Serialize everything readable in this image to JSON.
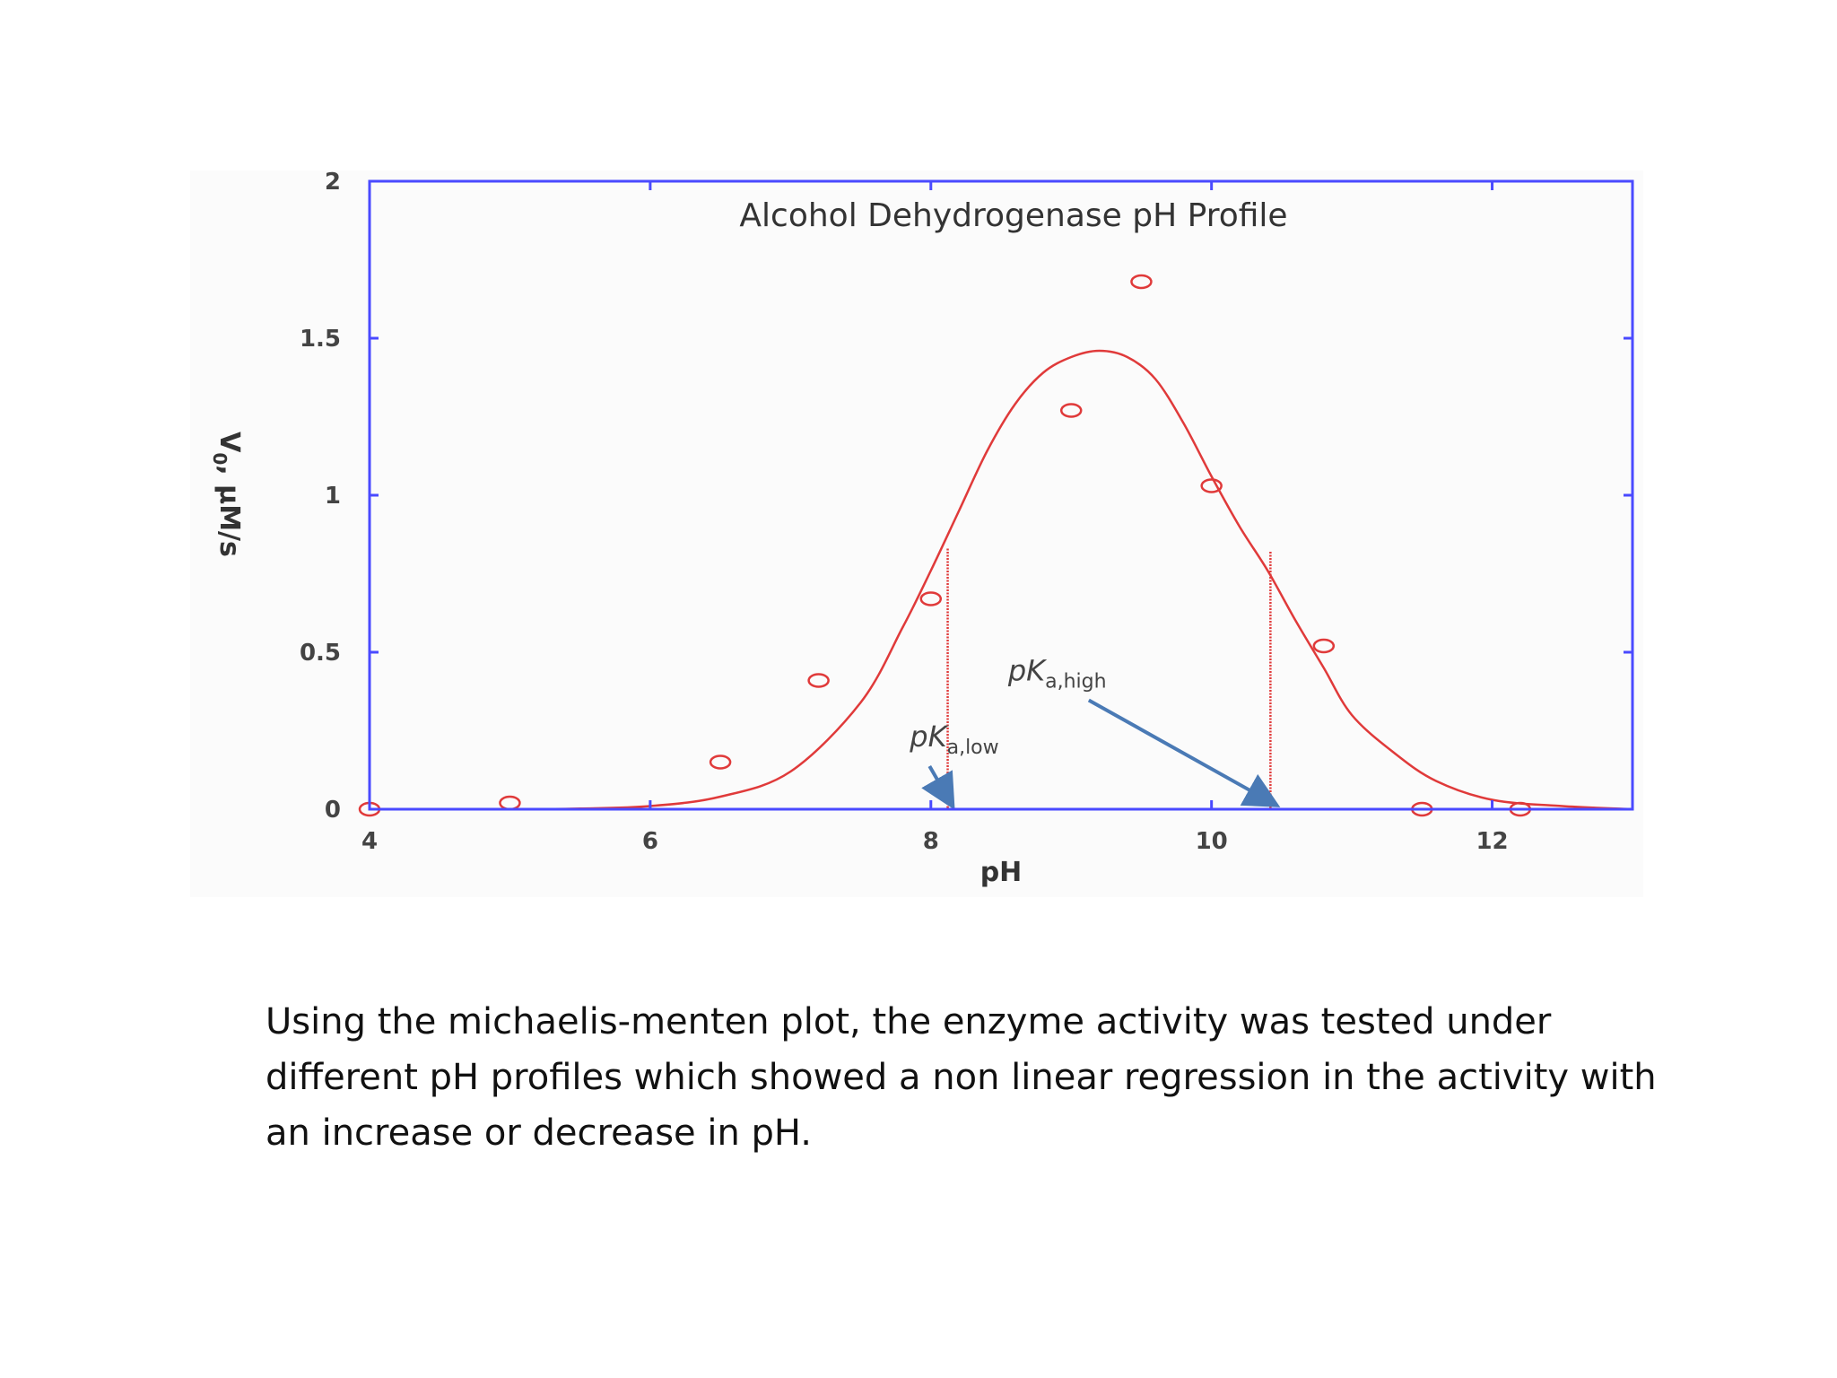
{
  "caption": "Using the michaelis-menten plot, the enzyme activity was tested under different pH profiles which showed a non linear regression in the activity with an increase or decrease in pH.",
  "colors": {
    "frame": "#4a4aff",
    "series": "#e03a3a",
    "arrow": "#4a7ab5",
    "plot_background": "#fbfbfb"
  },
  "chart_data": {
    "type": "scatter",
    "title": "Alcohol Dehydrogenase pH Profile",
    "xlabel": "pH",
    "ylabel": "V",
    "ylabel_sub": "0",
    "ylabel_unit": ", μM/s",
    "xlim": [
      4,
      13
    ],
    "ylim": [
      0,
      2
    ],
    "xticks": [
      4,
      6,
      8,
      10,
      12
    ],
    "yticks": [
      0,
      0.5,
      1,
      1.5,
      2
    ],
    "ytick_labels": [
      "0",
      "0.5",
      "1",
      "1.5",
      "2"
    ],
    "grid": false,
    "series": [
      {
        "kind": "points",
        "marker": "open-circle",
        "x": [
          4.0,
          5.0,
          6.5,
          7.2,
          8.0,
          9.0,
          9.5,
          10.0,
          10.8,
          11.5,
          12.2
        ],
        "y": [
          0.0,
          0.02,
          0.15,
          0.41,
          0.67,
          1.27,
          1.68,
          1.03,
          0.52,
          0.0,
          0.0
        ]
      },
      {
        "kind": "fit-curve",
        "x": [
          4.5,
          5.0,
          5.5,
          6.0,
          6.5,
          7.0,
          7.5,
          7.8,
          8.0,
          8.2,
          8.4,
          8.6,
          8.8,
          9.0,
          9.2,
          9.4,
          9.6,
          9.8,
          10.0,
          10.2,
          10.4,
          10.6,
          10.8,
          11.0,
          11.3,
          11.6,
          12.0,
          12.5,
          13.0
        ],
        "y": [
          0.0,
          0.0,
          0.002,
          0.01,
          0.04,
          0.12,
          0.34,
          0.58,
          0.76,
          0.95,
          1.14,
          1.29,
          1.39,
          1.44,
          1.46,
          1.44,
          1.37,
          1.23,
          1.06,
          0.9,
          0.76,
          0.6,
          0.45,
          0.3,
          0.18,
          0.09,
          0.03,
          0.01,
          0.0
        ]
      }
    ],
    "annotations": [
      {
        "name": "pka-low",
        "label_main": "pK",
        "label_sub": "a,low",
        "x": 8.12,
        "y_top": 0.83,
        "label_x": 7.85,
        "label_y": 0.2
      },
      {
        "name": "pka-high",
        "label_main": "pK",
        "label_sub": "a,high",
        "x": 10.42,
        "y_top": 0.82,
        "label_x": 8.55,
        "label_y": 0.41
      }
    ]
  }
}
